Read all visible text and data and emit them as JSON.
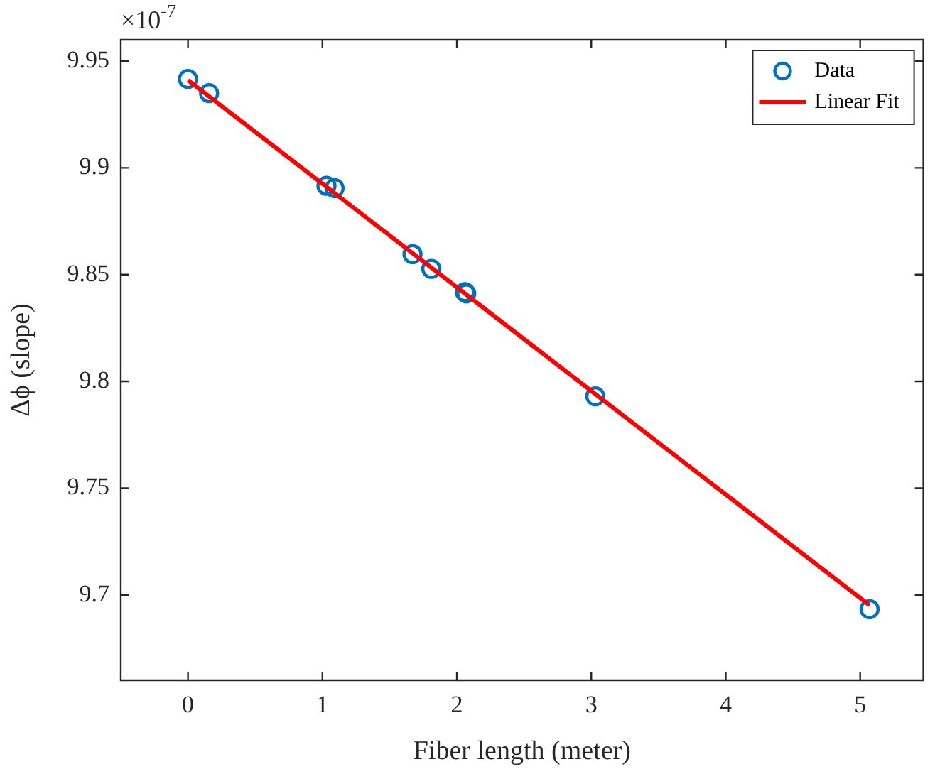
{
  "chart_data": {
    "type": "scatter",
    "xlabel": "Fiber length (meter)",
    "ylabel": "Δϕ (slope)",
    "annotations": [
      "×10$^{-7}$"
    ],
    "xlim": [
      -0.5,
      5.47
    ],
    "xticks": [
      0,
      1,
      2,
      3,
      4,
      5
    ],
    "ylim": [
      9.66,
      9.96
    ],
    "yticks": [
      9.7,
      9.75,
      9.8,
      9.85,
      9.9,
      9.95
    ],
    "grid": false,
    "legend": "top right",
    "marker": "circle",
    "series": [
      {
        "name": "Data",
        "color": "#0072bd",
        "x": [
          0,
          0.157,
          1.03,
          1.09,
          1.67,
          1.81,
          2.06,
          2.07,
          3.03,
          5.07
        ],
        "values": [
          9.9416,
          9.935,
          9.8916,
          9.8905,
          9.8596,
          9.8527,
          9.8418,
          9.8412,
          9.793,
          9.6933
        ]
      },
      {
        "name": "Linear Fit",
        "type": "line",
        "color": "#ff0000",
        "marker": "none",
        "line_style": "solid",
        "x": [
          0,
          5.07
        ],
        "values": [
          9.9411,
          9.6951
        ]
      }
    ]
  }
}
